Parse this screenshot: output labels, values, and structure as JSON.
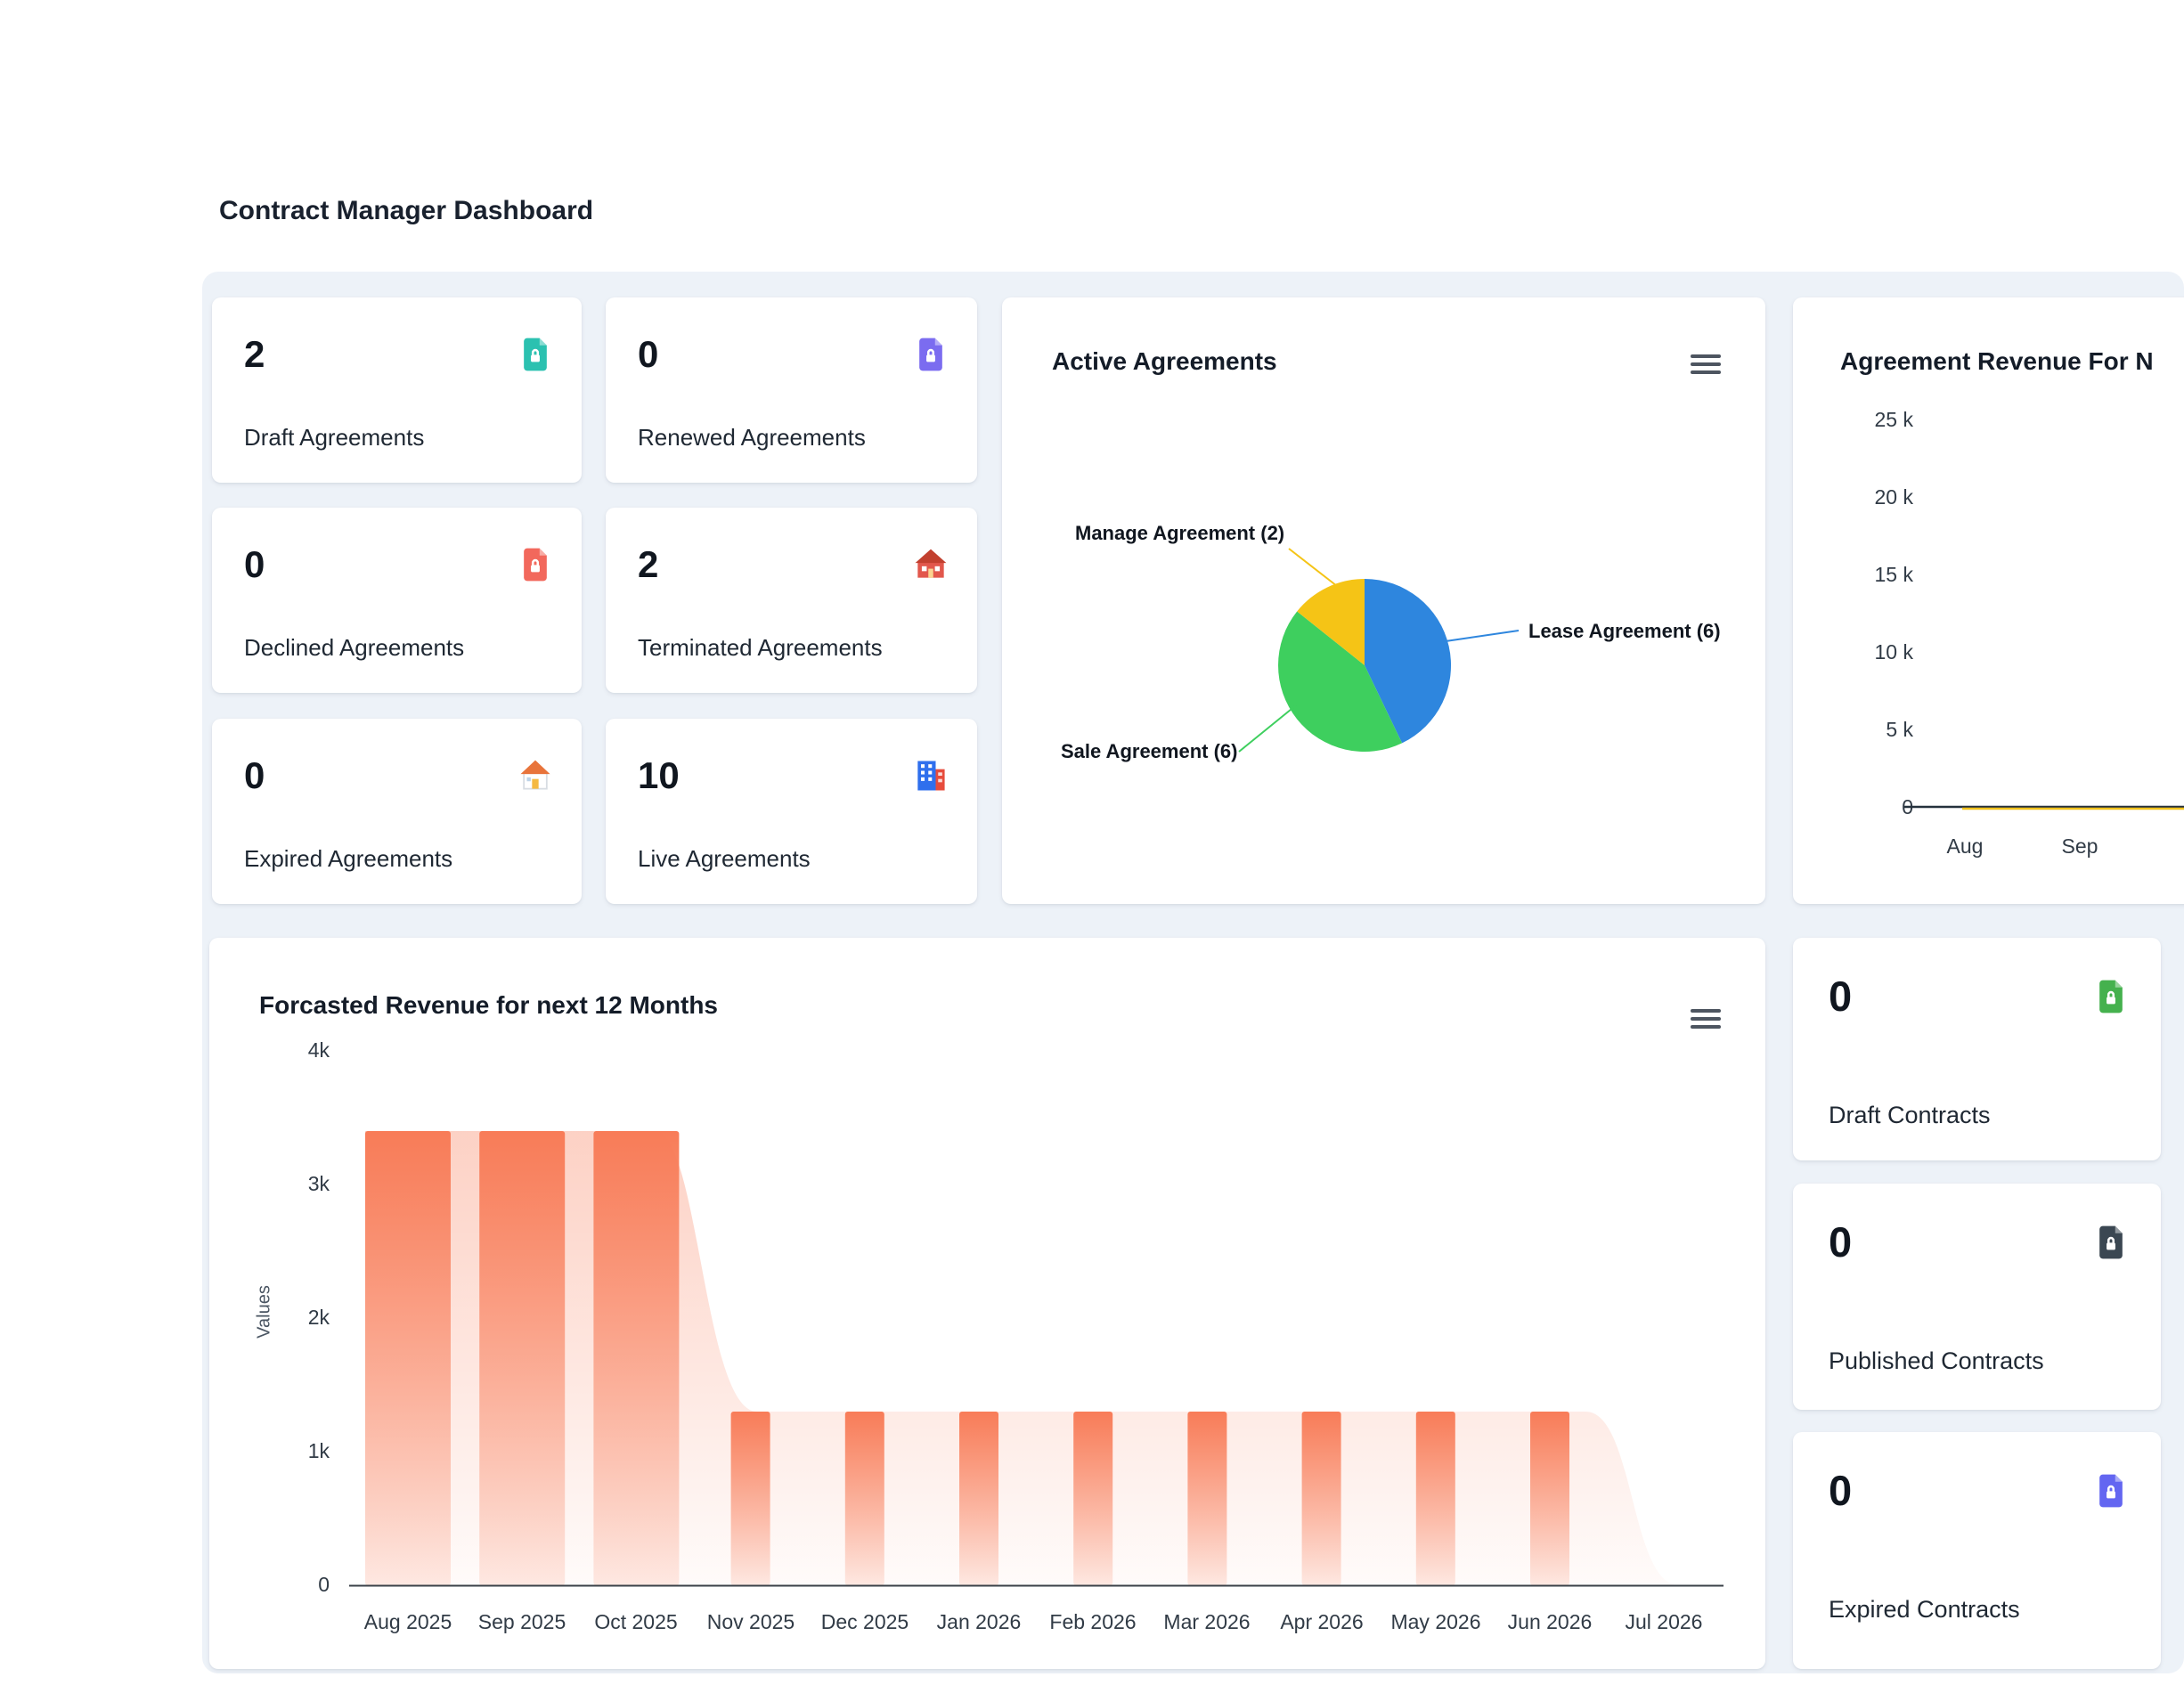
{
  "page": {
    "title": "Contract Manager Dashboard"
  },
  "stat_cards": [
    {
      "value": "2",
      "label": "Draft Agreements",
      "icon": "file-lock-icon",
      "color": "#2bc1b0"
    },
    {
      "value": "0",
      "label": "Renewed Agreements",
      "icon": "file-lock-icon",
      "color": "#7b6cf0"
    },
    {
      "value": "0",
      "label": "Declined Agreements",
      "icon": "file-lock-icon",
      "color": "#f2685c"
    },
    {
      "value": "2",
      "label": "Terminated Agreements",
      "icon": "house-icon",
      "color": "#c2402f"
    },
    {
      "value": "0",
      "label": "Expired Agreements",
      "icon": "house-icon",
      "color": "#e8743b"
    },
    {
      "value": "10",
      "label": "Live Agreements",
      "icon": "building-icon",
      "color": "#2f6fed"
    }
  ],
  "contract_cards": [
    {
      "value": "0",
      "label": "Draft Contracts",
      "icon": "file-lock-icon",
      "color": "#45b14e"
    },
    {
      "value": "0",
      "label": "Published Contracts",
      "icon": "file-lock-icon",
      "color": "#3b4752"
    },
    {
      "value": "0",
      "label": "Expired Contracts",
      "icon": "file-lock-icon",
      "color": "#6366f1"
    }
  ],
  "active_agreements": {
    "title": "Active Agreements",
    "menu_icon": "hamburger-menu-icon",
    "chart_data": {
      "type": "pie",
      "slices": [
        {
          "label": "Lease Agreement (6)",
          "value": 6,
          "color": "#2e86de"
        },
        {
          "label": "Sale Agreement (6)",
          "value": 6,
          "color": "#3ecf5e"
        },
        {
          "label": "Manage Agreement (2)",
          "value": 2,
          "color": "#f5c416"
        }
      ]
    }
  },
  "agreement_revenue": {
    "title": "Agreement Revenue For N",
    "chart_data": {
      "type": "line",
      "x": [
        "Aug",
        "Sep"
      ],
      "series": [
        {
          "name": "revenue-dark",
          "values": [
            0,
            0
          ],
          "color": "#25313d"
        },
        {
          "name": "revenue-yellow",
          "values": [
            0,
            0
          ],
          "color": "#f1c21b"
        }
      ],
      "yticks": [
        "25 k",
        "20 k",
        "15 k",
        "10 k",
        "5 k",
        "0"
      ],
      "ylim": [
        0,
        25000
      ],
      "legend_position": "none",
      "grid": false
    }
  },
  "forecast": {
    "title": "Forcasted Revenue for next 12 Months",
    "ylabel": "Values",
    "menu_icon": "hamburger-menu-icon",
    "chart_data": {
      "type": "bar+area",
      "categories": [
        "Aug 2025",
        "Sep 2025",
        "Oct 2025",
        "Nov 2025",
        "Dec 2025",
        "Jan 2026",
        "Feb 2026",
        "Mar 2026",
        "Apr 2026",
        "May 2026",
        "Jun 2026",
        "Jul 2026"
      ],
      "values": [
        3400,
        3400,
        3400,
        1300,
        1300,
        1300,
        1300,
        1300,
        1300,
        1300,
        1300,
        0
      ],
      "yticks": [
        "4k",
        "3k",
        "2k",
        "1k",
        "0"
      ],
      "ylim": [
        0,
        4000
      ],
      "bar_color": "#f87c58",
      "grid": false
    }
  }
}
